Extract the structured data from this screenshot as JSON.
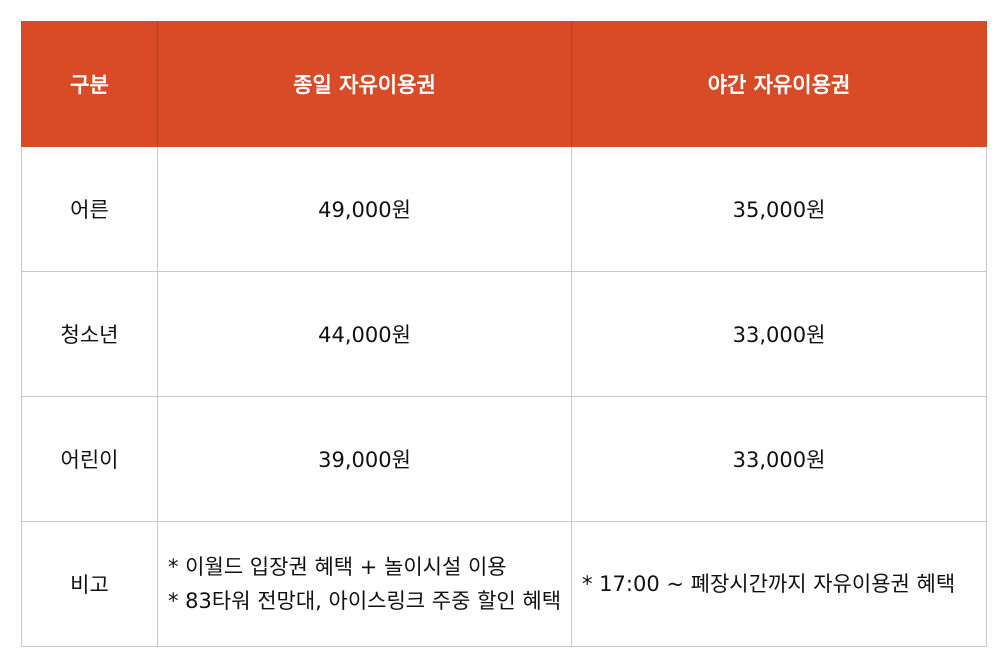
{
  "header": {
    "category": "구분",
    "allday": "종일 자유이용권",
    "night": "야간 자유이용권"
  },
  "rows": [
    {
      "label": "어른",
      "allday": "49,000원",
      "night": "35,000원"
    },
    {
      "label": "청소년",
      "allday": "44,000원",
      "night": "33,000원"
    },
    {
      "label": "어린이",
      "allday": "39,000원",
      "night": "33,000원"
    }
  ],
  "notes": {
    "label": "비고",
    "allday": [
      "* 이월드 입장권 혜택 + 놀이시설 이용",
      "* 83타워 전망대, 아이스링크 주중 할인 혜택"
    ],
    "night": [
      "* 17:00 ~ 폐장시간까지 자유이용권 혜택"
    ]
  },
  "colors": {
    "header_bg": "#d94a27",
    "header_text": "#ffffff",
    "border": "#c8c8c8"
  }
}
